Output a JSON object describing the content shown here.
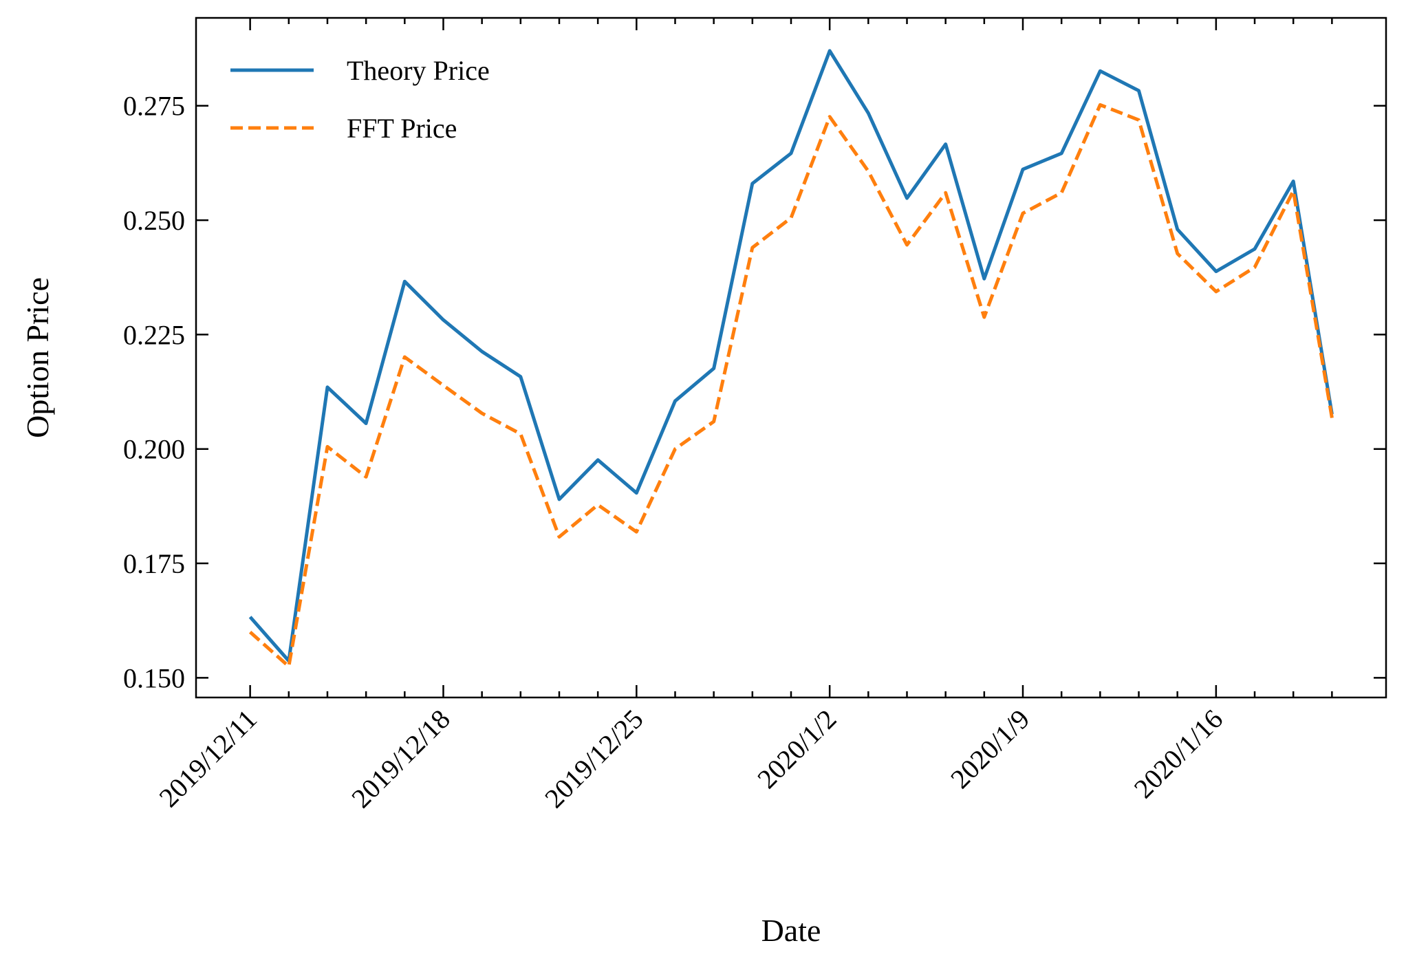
{
  "chart_data": {
    "type": "line",
    "xlabel": "Date",
    "ylabel": "Option Price",
    "categories": [
      "2019/12/11",
      null,
      null,
      null,
      null,
      "2019/12/18",
      null,
      null,
      null,
      null,
      "2019/12/25",
      null,
      null,
      null,
      null,
      "2020/1/2",
      null,
      null,
      null,
      null,
      "2020/1/9",
      null,
      null,
      null,
      null,
      "2020/1/16",
      null,
      null,
      null
    ],
    "series": [
      {
        "name": "Theory Price",
        "color": "#1f77b4",
        "dash": "solid",
        "values": [
          0.1633,
          0.1537,
          0.2135,
          0.2056,
          0.2366,
          0.2282,
          0.2213,
          0.2158,
          0.189,
          0.1976,
          0.1904,
          0.2105,
          0.2176,
          0.258,
          0.2646,
          0.287,
          0.2734,
          0.2548,
          0.2666,
          0.2372,
          0.2611,
          0.2646,
          0.2826,
          0.2783,
          0.248,
          0.2388,
          0.2437,
          0.2585,
          0.2076
        ]
      },
      {
        "name": "FFT Price",
        "color": "#ff7f0e",
        "dash": "dashed",
        "values": [
          0.16,
          0.1525,
          0.2005,
          0.1939,
          0.2201,
          0.2139,
          0.2078,
          0.2033,
          0.1808,
          0.1878,
          0.1819,
          0.2,
          0.206,
          0.244,
          0.2505,
          0.2726,
          0.2607,
          0.2446,
          0.256,
          0.2288,
          0.2515,
          0.256,
          0.2752,
          0.2719,
          0.2427,
          0.2344,
          0.2397,
          0.2564,
          0.2068
        ]
      }
    ],
    "ylim": [
      0.1457,
      0.2942
    ],
    "yticks": [
      {
        "value": 0.15,
        "label": "0.150"
      },
      0.175,
      {
        "value": 0.2,
        "label": "0.200"
      },
      0.225,
      {
        "value": 0.25,
        "label": "0.250"
      },
      0.275
    ],
    "legend": "upper left",
    "grid": false
  }
}
